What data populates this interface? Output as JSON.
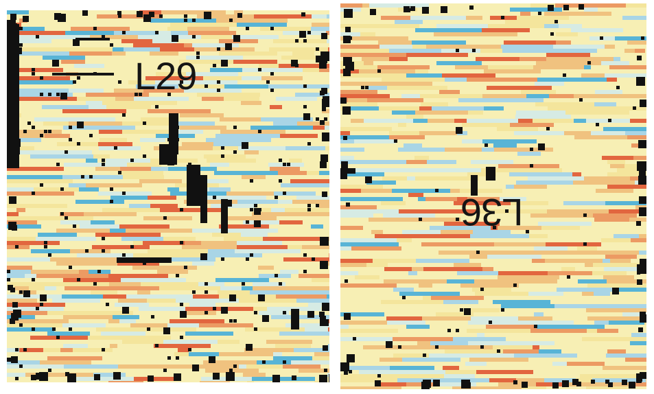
{
  "panels": {
    "left": {
      "label": "L29",
      "label_orientation": "upright"
    },
    "right": {
      "label": "L36",
      "label_orientation": "rotated-180"
    }
  },
  "colors": {
    "background": "#ffffff",
    "pale_yellow": "#f7efb4",
    "light_yellow": "#f4e59c",
    "light_orange": "#f0c27f",
    "orange": "#ec9a63",
    "red_orange": "#e2663f",
    "pale_blue": "#d6ebe4",
    "light_blue": "#a9d5e6",
    "blue": "#58b4d6",
    "black": "#111111"
  }
}
